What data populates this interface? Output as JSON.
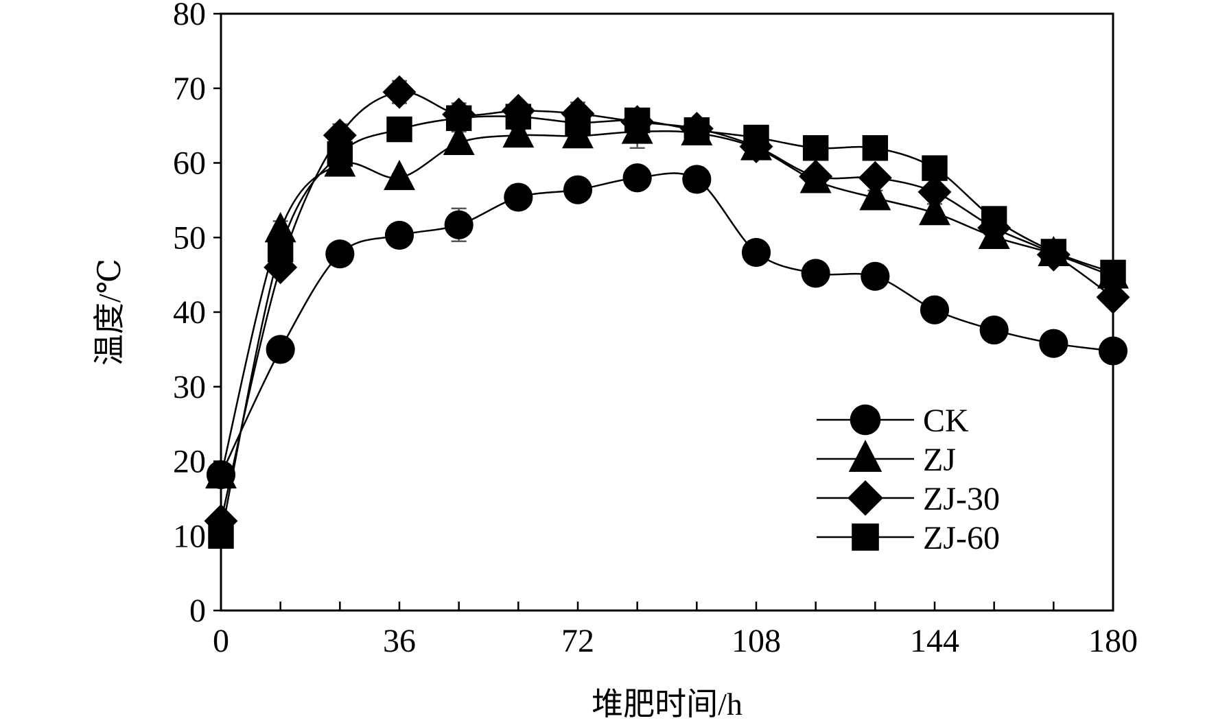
{
  "chart_data": {
    "type": "line",
    "title": "",
    "xlabel": "堆肥时间/h",
    "ylabel": "温度/℃",
    "xlim": [
      0,
      180
    ],
    "ylim": [
      0,
      80
    ],
    "xticks": [
      "0",
      "36",
      "72",
      "108",
      "144",
      "180"
    ],
    "yticks": [
      "0",
      "10",
      "20",
      "30",
      "40",
      "50",
      "60",
      "70",
      "80"
    ],
    "x": [
      0,
      12,
      24,
      36,
      48,
      60,
      72,
      84,
      96,
      108,
      120,
      132,
      144,
      156,
      168,
      180
    ],
    "grid": false,
    "legend_position": "bottom-right",
    "series": [
      {
        "name": "CK",
        "marker": "circle",
        "values": [
          18.2,
          35,
          47.8,
          50.3,
          51.7,
          55.4,
          56.4,
          58.0,
          57.8,
          48.0,
          45.2,
          44.8,
          40.3,
          37.6,
          35.8,
          34.8
        ],
        "errors": [
          0.5,
          0.5,
          0.8,
          1.0,
          2.2,
          1.6,
          0.8,
          0.9,
          1.6,
          0.5,
          0.5,
          0.5,
          0.5,
          0.5,
          0.5,
          0.5
        ]
      },
      {
        "name": "ZJ",
        "marker": "triangle",
        "values": [
          18.0,
          51.0,
          59.8,
          58.0,
          62.7,
          63.7,
          63.6,
          64.2,
          64.0,
          62.0,
          57.6,
          55.3,
          53.3,
          50.1,
          47.8,
          44.8
        ],
        "errors": [
          0.5,
          1.2,
          1.2,
          0.5,
          1.5,
          0.8,
          0.8,
          2.2,
          1.2,
          0.5,
          0.8,
          1.0,
          1.2,
          0.5,
          0.8,
          0.5
        ]
      },
      {
        "name": "ZJ-30",
        "marker": "diamond",
        "values": [
          12.0,
          46.0,
          63.7,
          69.5,
          66.5,
          67.0,
          66.6,
          65.5,
          64.6,
          62.2,
          58.2,
          58.0,
          56.1,
          51.3,
          47.7,
          42.0
        ],
        "errors": [
          0.5,
          1.0,
          1.5,
          1.5,
          1.5,
          0.8,
          1.5,
          1.0,
          1.0,
          0.5,
          0.8,
          1.0,
          0.8,
          0.5,
          0.8,
          1.2
        ]
      },
      {
        "name": "ZJ-60",
        "marker": "square",
        "values": [
          10.0,
          48.4,
          61.2,
          64.5,
          66.0,
          66.2,
          65.4,
          65.7,
          64.4,
          63.4,
          62.0,
          62.0,
          59.3,
          52.5,
          48.1,
          45.3
        ],
        "errors": [
          0.5,
          1.2,
          1.5,
          0.5,
          1.5,
          0.8,
          1.0,
          1.5,
          1.2,
          0.8,
          0.5,
          1.5,
          0.8,
          0.5,
          1.2,
          0.5
        ]
      }
    ]
  }
}
